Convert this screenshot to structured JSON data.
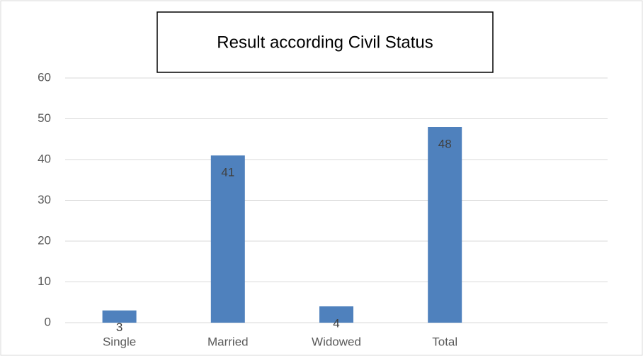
{
  "chart_data": {
    "type": "bar",
    "title": "Result according Civil Status",
    "categories": [
      "Single",
      "Married",
      "Widowed",
      "Total",
      null
    ],
    "values": [
      3,
      41,
      4,
      48,
      null
    ],
    "color": "#4f81bd",
    "ylim": [
      0,
      60
    ],
    "yticks": [
      0,
      10,
      20,
      30,
      40,
      50,
      60
    ],
    "grid": true
  }
}
